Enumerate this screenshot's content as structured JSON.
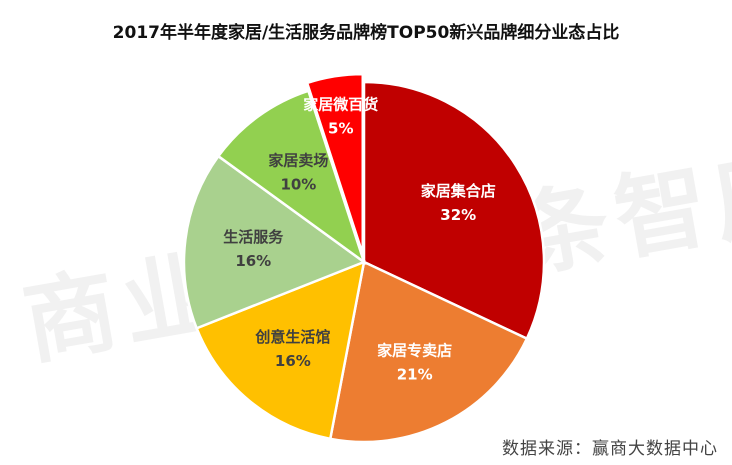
{
  "title": "2017年半年度家居/生活服务品牌榜TOP50新兴品牌细分业态占比",
  "watermark": "商业地产头条智库",
  "source": "数据来源：赢商大数据中心",
  "chart_data": {
    "type": "pie",
    "title": "2017年半年度家居/生活服务品牌榜TOP50新兴品牌细分业态占比",
    "slices": [
      {
        "label": "家居集合店",
        "value": 32,
        "display": "32%",
        "color": "#C00000",
        "text_color": "#ffffff"
      },
      {
        "label": "家居专卖店",
        "value": 21,
        "display": "21%",
        "color": "#ED7D31",
        "text_color": "#ffffff"
      },
      {
        "label": "创意生活馆",
        "value": 16,
        "display": "16%",
        "color": "#FFC000",
        "text_color": "#404040"
      },
      {
        "label": "生活服务",
        "value": 16,
        "display": "16%",
        "color": "#A9D18E",
        "text_color": "#404040"
      },
      {
        "label": "家居卖场",
        "value": 10,
        "display": "10%",
        "color": "#92D050",
        "text_color": "#404040"
      },
      {
        "label": "家居微百货",
        "value": 5,
        "display": "5%",
        "color": "#FF0000",
        "text_color": "#ffffff"
      }
    ]
  }
}
